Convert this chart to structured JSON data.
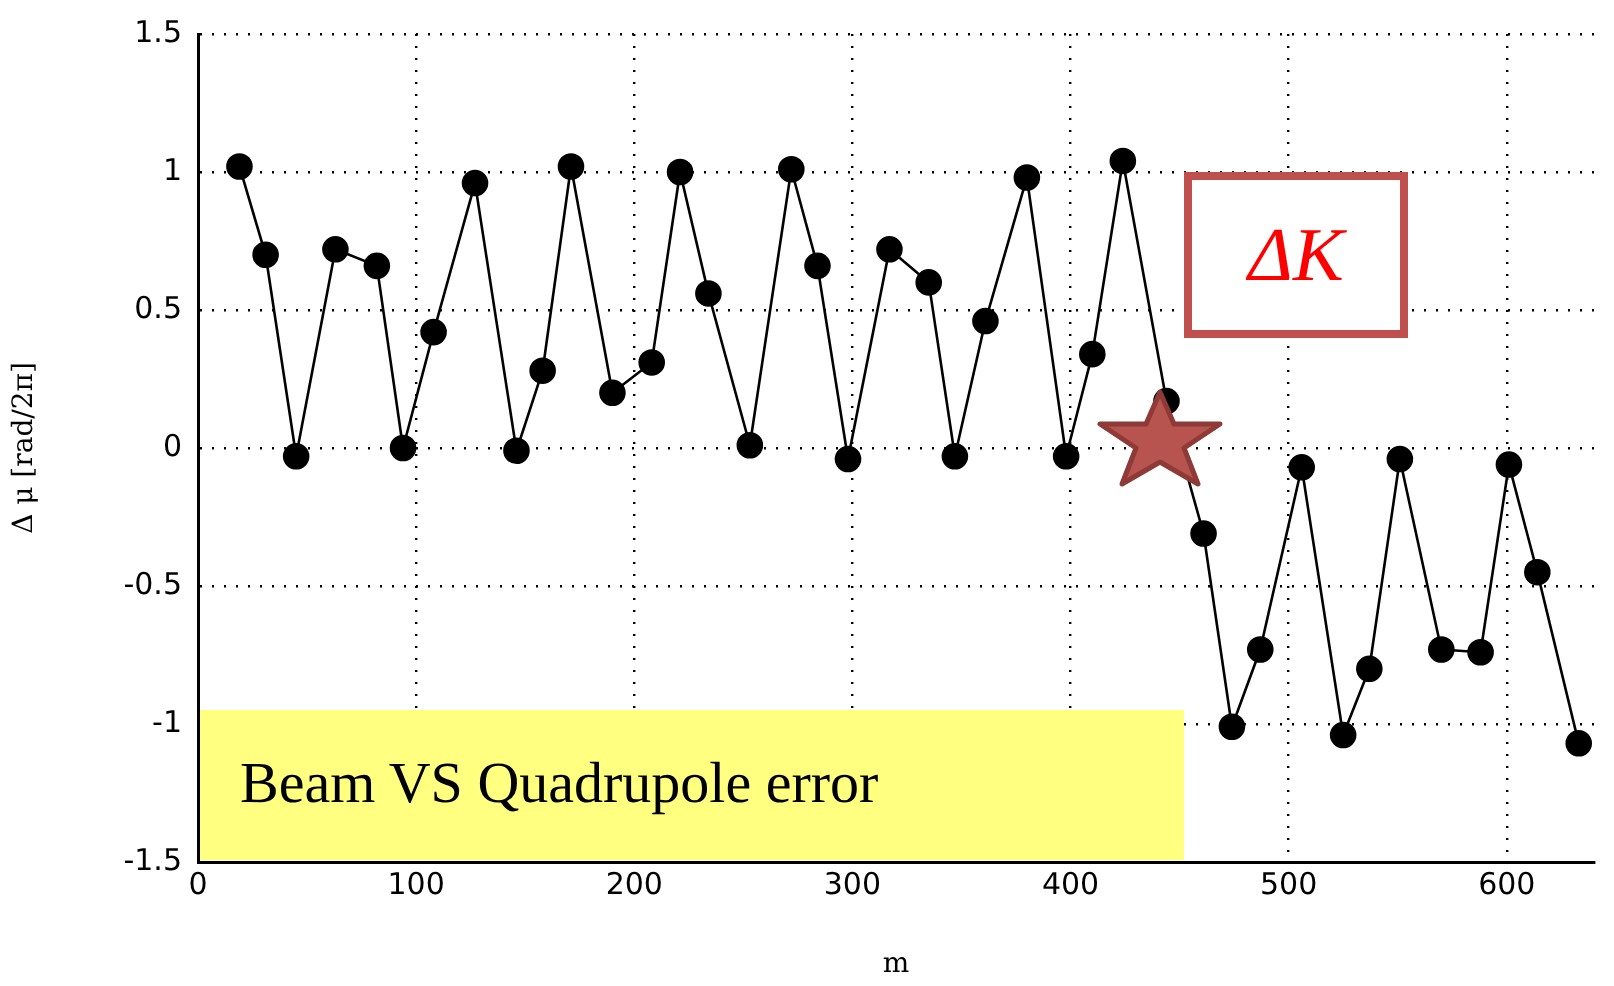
{
  "chart_data": {
    "type": "line",
    "xlabel": "m",
    "ylabel": "Δ μ [rad/2π]",
    "x": [
      19,
      31,
      45,
      63,
      82,
      94,
      108,
      127,
      146,
      158,
      171,
      190,
      208,
      221,
      234,
      253,
      272,
      284,
      298,
      317,
      335,
      347,
      361,
      380,
      398,
      410,
      424,
      444,
      461,
      474,
      487,
      506,
      525,
      537,
      551,
      570,
      588,
      601,
      614,
      633
    ],
    "series": [
      {
        "color": "#000000",
        "values": [
          1.02,
          0.7,
          -0.03,
          0.72,
          0.66,
          0,
          0.42,
          0.96,
          -0.01,
          0.28,
          1.02,
          0.2,
          0.31,
          1,
          0.56,
          0.01,
          1.01,
          0.66,
          -0.04,
          0.72,
          0.6,
          -0.03,
          0.46,
          0.98,
          -0.03,
          0.34,
          1.04,
          0.17,
          -0.31,
          -1.01,
          -0.73,
          -0.07,
          -1.04,
          -0.8,
          -0.04,
          -0.73,
          -0.74,
          -0.06,
          -0.45,
          -1.07
        ]
      }
    ],
    "xlim": [
      0,
      640
    ],
    "xticks": [
      0,
      100,
      200,
      300,
      400,
      500,
      600
    ],
    "ylim": [
      -1.5,
      1.5
    ],
    "yticks": [
      -1.5,
      -1,
      -0.5,
      0,
      0.5,
      1,
      1.5
    ],
    "grid": true,
    "legend": false,
    "marker": "circle",
    "line_style": "solid",
    "annotations": [
      "ΔK",
      "Beam VS Quadrupole error"
    ]
  }
}
